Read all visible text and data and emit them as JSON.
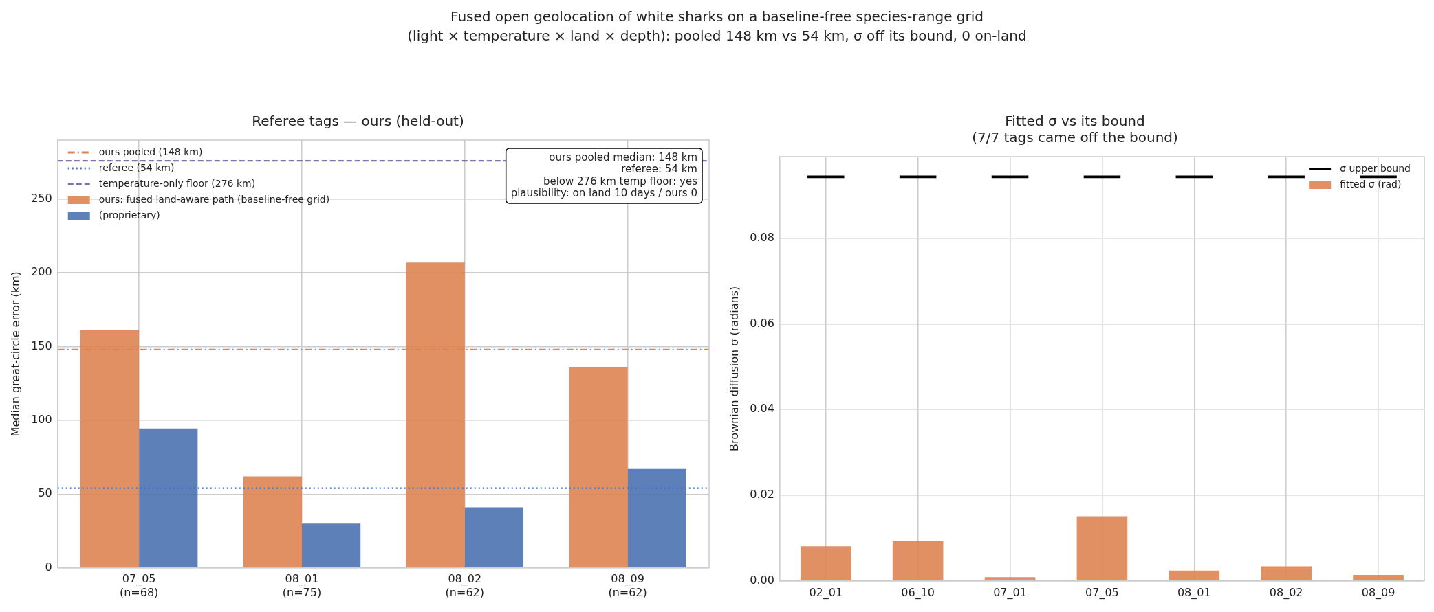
{
  "chart_data": [
    {
      "type": "bar",
      "subtitle": "Fused open geolocation of white sharks on a baseline-free species-range grid\n(light × temperature × land × depth): pooled 148 km vs 54 km, σ off its bound, 0 on-land",
      "title": "Referee tags — ours (held-out)",
      "ylabel": "Median great-circle error (km)",
      "categories": [
        "07_05\n(n=68)",
        "08_01\n(n=75)",
        "08_02\n(n=62)",
        "08_09\n(n=62)"
      ],
      "series": [
        {
          "name": "ours: fused land-aware path (baseline-free grid)",
          "color": "#dd8452",
          "values": [
            161,
            62,
            207,
            136
          ]
        },
        {
          "name": "(proprietary)",
          "color": "#4c72b0",
          "values": [
            94.5,
            30,
            41,
            67
          ]
        }
      ],
      "ylim": [
        0,
        290
      ],
      "yticks": [
        0,
        50,
        100,
        150,
        200,
        250
      ],
      "ref_lines": [
        {
          "axis": "y",
          "value": 148,
          "label": "ours pooled (148 km)",
          "color": "#dd8452",
          "line_style": "dashdot"
        },
        {
          "axis": "y",
          "value": 54,
          "label": "referee (54 km)",
          "color": "#4470c4",
          "line_style": "dotted"
        },
        {
          "axis": "y",
          "value": 276,
          "label": "temperature-only floor (276 km)",
          "color": "#8172b3",
          "line_style": "dashed"
        }
      ],
      "annotations": [
        "ours pooled median: 148 km",
        "referee: 54 km",
        "below 276 km temp floor: yes",
        "plausibility: on land 10 days / ours 0"
      ],
      "grid": true,
      "legend": "top left"
    },
    {
      "type": "bar",
      "title": "Fitted σ vs its bound\n(7/7 tags came off the bound)",
      "ylabel": "Brownian diffusion σ (radians)",
      "categories": [
        "02_01",
        "06_10",
        "07_01",
        "07_05",
        "08_01",
        "08_02",
        "08_09"
      ],
      "series": [
        {
          "name": "σ upper bound",
          "color": "#000000",
          "base": [
            0.094,
            0.094,
            0.094,
            0.094,
            0.094,
            0.094,
            0.094
          ],
          "values": [
            0.0006,
            0.0006,
            0.0006,
            0.0006,
            0.0006,
            0.0006,
            0.0006
          ]
        },
        {
          "name": "fitted σ (rad)",
          "color": "#dd8452",
          "values": [
            0.0081,
            0.0093,
            0.0009,
            0.0151,
            0.0024,
            0.0034,
            0.0014
          ]
        }
      ],
      "ylim": [
        0,
        0.099
      ],
      "yticks": [
        {
          "value": 0,
          "label": "0.00"
        },
        {
          "value": 0.02,
          "label": "0.02"
        },
        {
          "value": 0.04,
          "label": "0.04"
        },
        {
          "value": 0.06,
          "label": "0.06"
        },
        {
          "value": 0.08,
          "label": "0.08"
        }
      ],
      "grid": true,
      "legend": "top right"
    }
  ]
}
